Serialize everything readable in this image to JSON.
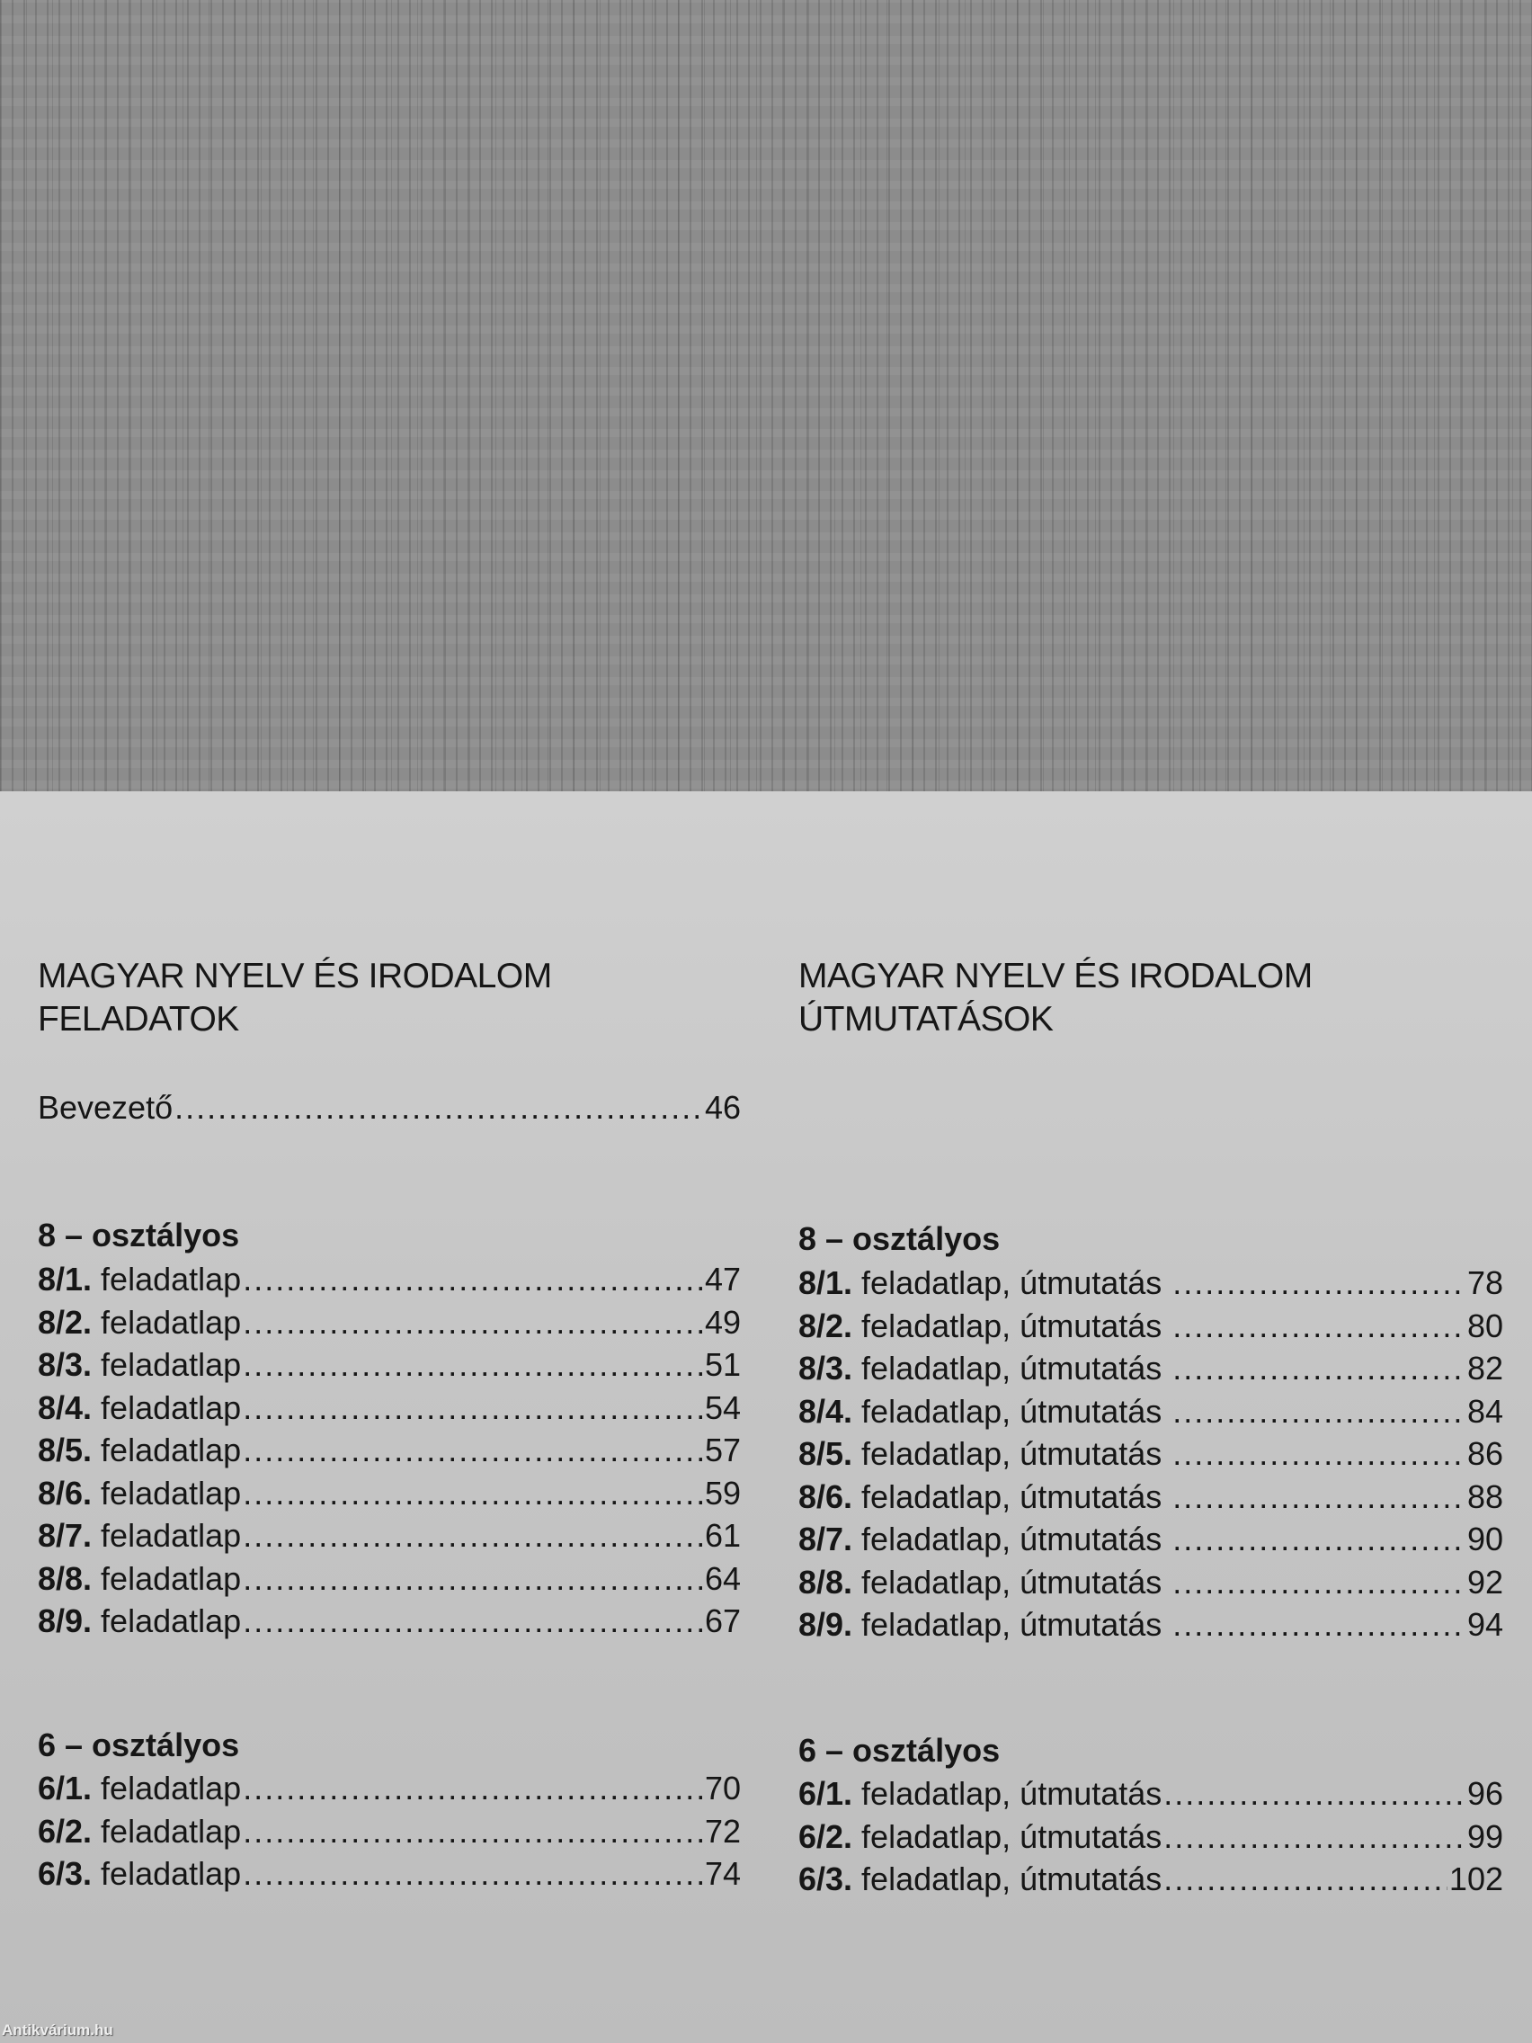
{
  "left": {
    "heading_line1": "MAGYAR NYELV ÉS IRODALOM",
    "heading_line2": "FELADATOK",
    "intro": {
      "label": "Bevezető",
      "page": "46"
    },
    "section8": "8  – osztályos",
    "items8": [
      {
        "num": "8/1.",
        "label": " feladatlap",
        "page": "47"
      },
      {
        "num": "8/2.",
        "label": " feladatlap",
        "page": "49"
      },
      {
        "num": "8/3.",
        "label": " feladatlap",
        "page": "51"
      },
      {
        "num": "8/4.",
        "label": " feladatlap",
        "page": "54"
      },
      {
        "num": "8/5.",
        "label": " feladatlap",
        "page": "57"
      },
      {
        "num": "8/6.",
        "label": " feladatlap",
        "page": "59"
      },
      {
        "num": "8/7.",
        "label": " feladatlap",
        "page": "61"
      },
      {
        "num": "8/8.",
        "label": " feladatlap",
        "page": "64"
      },
      {
        "num": "8/9.",
        "label": " feladatlap",
        "page": "67"
      }
    ],
    "section6": "6  – osztályos",
    "items6": [
      {
        "num": "6/1.",
        "label": " feladatlap",
        "page": "70"
      },
      {
        "num": "6/2.",
        "label": " feladatlap",
        "page": "72"
      },
      {
        "num": "6/3.",
        "label": " feladatlap",
        "page": "74"
      }
    ]
  },
  "right": {
    "heading_line1": "MAGYAR NYELV ÉS IRODALOM",
    "heading_line2": "ÚTMUTATÁSOK",
    "section8": "8  – osztályos",
    "items8": [
      {
        "num": "8/1.",
        "label": " feladatlap, útmutatás ",
        "page": "78"
      },
      {
        "num": "8/2.",
        "label": " feladatlap, útmutatás ",
        "page": "80"
      },
      {
        "num": "8/3.",
        "label": " feladatlap, útmutatás ",
        "page": "82"
      },
      {
        "num": "8/4.",
        "label": " feladatlap, útmutatás ",
        "page": "84"
      },
      {
        "num": "8/5.",
        "label": " feladatlap, útmutatás ",
        "page": "86"
      },
      {
        "num": "8/6.",
        "label": " feladatlap, útmutatás ",
        "page": "88"
      },
      {
        "num": "8/7.",
        "label": " feladatlap, útmutatás ",
        "page": "90"
      },
      {
        "num": "8/8.",
        "label": " feladatlap, útmutatás ",
        "page": "92"
      },
      {
        "num": "8/9.",
        "label": " feladatlap, útmutatás ",
        "page": "94"
      }
    ],
    "section6": "6  – osztályos",
    "items6": [
      {
        "num": "6/1.",
        "label": " feladatlap, útmutatás",
        "page": "96"
      },
      {
        "num": "6/2.",
        "label": " feladatlap, útmutatás",
        "page": "99"
      },
      {
        "num": "6/3.",
        "label": " feladatlap, útmutatás",
        "page": "102"
      }
    ]
  },
  "watermark": "Antikvárium.hu",
  "colors": {
    "paper": "#c6c6c6",
    "cover": "#8c8c8c",
    "ink": "#161616"
  }
}
